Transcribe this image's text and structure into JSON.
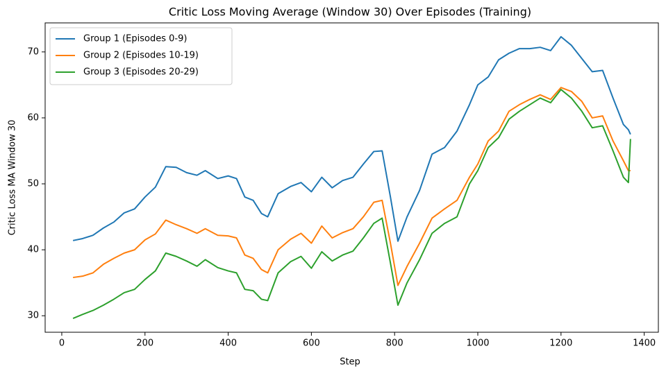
{
  "chart_data": {
    "type": "line",
    "title": "Critic Loss Moving Average (Window 30) Over Episodes (Training)",
    "x_label": "Step",
    "y_label": "Critic Loss  MA Window 30",
    "x": [
      27,
      50,
      75,
      100,
      125,
      150,
      175,
      200,
      225,
      250,
      275,
      300,
      325,
      345,
      375,
      400,
      420,
      440,
      460,
      480,
      495,
      520,
      550,
      575,
      600,
      625,
      650,
      675,
      700,
      725,
      750,
      770,
      790,
      808,
      830,
      860,
      890,
      920,
      950,
      980,
      1000,
      1025,
      1050,
      1075,
      1100,
      1125,
      1150,
      1175,
      1200,
      1225,
      1250,
      1275,
      1300,
      1325,
      1350,
      1362,
      1367
    ],
    "series": [
      {
        "name": "Group 1 (Episodes 0-9)",
        "color": "#1f77b4",
        "values": [
          41.4,
          41.7,
          42.2,
          43.3,
          44.2,
          45.6,
          46.2,
          48.0,
          49.5,
          52.6,
          52.5,
          51.7,
          51.3,
          52.0,
          50.8,
          51.2,
          50.8,
          48.0,
          47.5,
          45.5,
          45.0,
          48.5,
          49.6,
          50.2,
          48.8,
          51.0,
          49.4,
          50.5,
          51.0,
          53.0,
          54.9,
          55.0,
          48.0,
          41.3,
          45.0,
          49.0,
          54.5,
          55.5,
          58.0,
          62.0,
          65.0,
          66.2,
          68.8,
          69.8,
          70.5,
          70.5,
          70.7,
          70.2,
          72.3,
          71.0,
          69.0,
          67.0,
          67.2,
          63.0,
          59.0,
          58.2,
          57.5
        ]
      },
      {
        "name": "Group 2 (Episodes 10-19)",
        "color": "#ff7f0e",
        "values": [
          35.8,
          36.0,
          36.5,
          37.8,
          38.7,
          39.5,
          40.0,
          41.5,
          42.4,
          44.5,
          43.8,
          43.2,
          42.5,
          43.2,
          42.2,
          42.1,
          41.8,
          39.2,
          38.7,
          37.0,
          36.5,
          40.0,
          41.6,
          42.5,
          41.0,
          43.6,
          41.8,
          42.6,
          43.2,
          45.0,
          47.2,
          47.5,
          41.0,
          34.6,
          37.5,
          41.0,
          44.8,
          46.2,
          47.5,
          51.0,
          53.0,
          56.5,
          58.0,
          61.0,
          62.0,
          62.8,
          63.5,
          62.8,
          64.6,
          64.0,
          62.5,
          60.0,
          60.3,
          56.5,
          53.5,
          52.0,
          52.0
        ]
      },
      {
        "name": "Group 3 (Episodes 20-29)",
        "color": "#2ca02c",
        "values": [
          29.6,
          30.2,
          30.8,
          31.6,
          32.5,
          33.5,
          34.0,
          35.5,
          36.8,
          39.5,
          39.0,
          38.3,
          37.5,
          38.5,
          37.3,
          36.8,
          36.5,
          34.0,
          33.8,
          32.5,
          32.3,
          36.5,
          38.2,
          39.0,
          37.2,
          39.7,
          38.3,
          39.2,
          39.8,
          41.8,
          44.0,
          44.8,
          38.0,
          31.6,
          35.0,
          38.5,
          42.5,
          44.0,
          45.0,
          50.0,
          52.0,
          55.5,
          57.0,
          59.8,
          61.0,
          62.0,
          63.0,
          62.3,
          64.3,
          63.0,
          61.0,
          58.5,
          58.8,
          55.0,
          51.0,
          50.2,
          56.8
        ]
      }
    ],
    "xlim": [
      -40,
      1434
    ],
    "ylim": [
      27.5,
      74.4
    ],
    "xticks": [
      0,
      200,
      400,
      600,
      800,
      1000,
      1200,
      1400
    ],
    "yticks": [
      30,
      40,
      50,
      60,
      70
    ],
    "legend": "upper left"
  }
}
